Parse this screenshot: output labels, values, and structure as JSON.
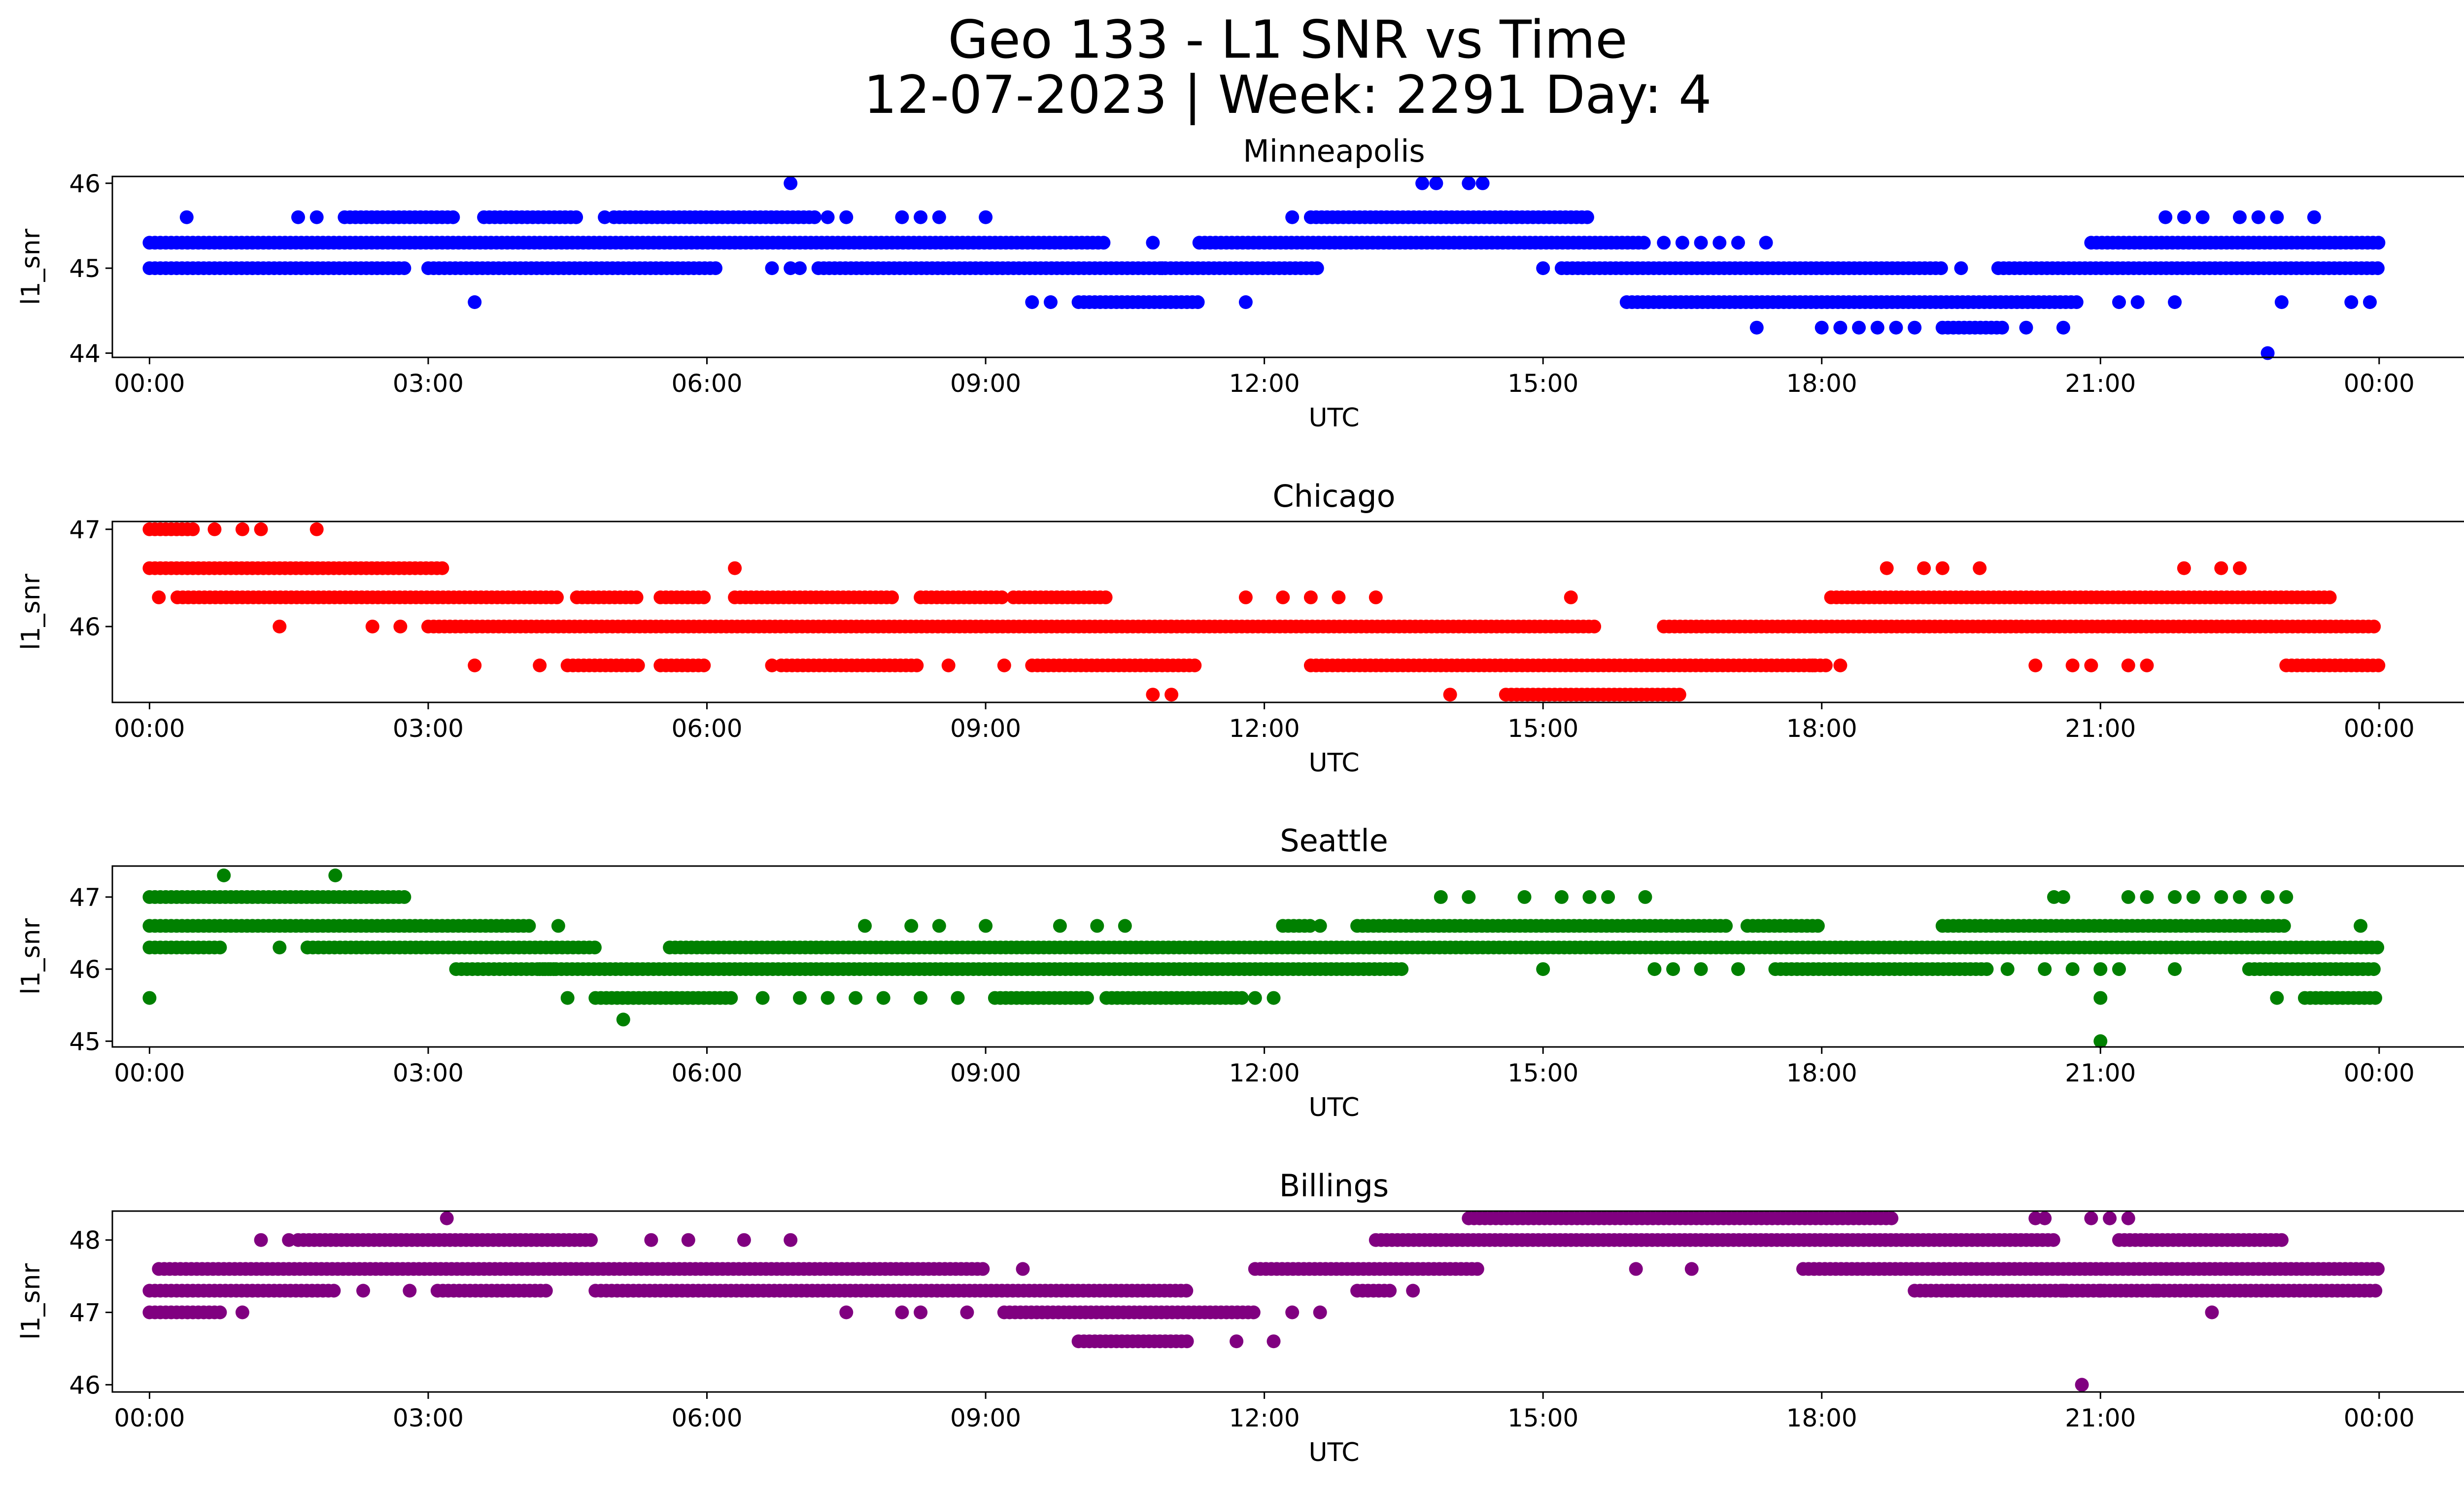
{
  "figure": {
    "title_line1": "Geo 133 - L1 SNR vs Time",
    "title_line2": "12-07-2023 | Week: 2291 Day: 4"
  },
  "chart_data": [
    {
      "type": "scatter",
      "title": "Minneapolis",
      "xlabel": "UTC",
      "ylabel": "l1_snr",
      "color": "#0000ff",
      "x_unit": "hours UTC",
      "xlim": [
        -0.4,
        25.9
      ],
      "ylim": [
        43.95,
        46.08
      ],
      "yticks": [
        44,
        45,
        46
      ],
      "xtick_labels": [
        "00:00",
        "03:00",
        "06:00",
        "09:00",
        "12:00",
        "15:00",
        "18:00",
        "21:00",
        "00:00"
      ],
      "segments": [
        {
          "y": 45.3,
          "x": [
            [
              0.0,
              10.3
            ],
            [
              11.3,
              16.1
            ],
            [
              20.9,
              24.0
            ]
          ]
        },
        {
          "y": 45.0,
          "x": [
            [
              0.0,
              2.8
            ],
            [
              3.0,
              6.1
            ],
            [
              7.2,
              12.6
            ],
            [
              15.2,
              19.3
            ],
            [
              19.9,
              24.0
            ]
          ]
        },
        {
          "y": 45.6,
          "x": [
            [
              2.1,
              3.3
            ],
            [
              3.6,
              4.6
            ],
            [
              5.0,
              7.2
            ],
            [
              12.5,
              15.5
            ]
          ]
        },
        {
          "y": 44.6,
          "x": [
            [
              10.0,
              11.3
            ],
            [
              15.9,
              20.8
            ]
          ]
        },
        {
          "y": 44.3,
          "x": [
            [
              19.3,
              20.0
            ]
          ]
        }
      ],
      "points": [
        {
          "x": 0.4,
          "y": 45.6
        },
        {
          "x": 1.6,
          "y": 45.6
        },
        {
          "x": 1.8,
          "y": 45.6
        },
        {
          "x": 4.9,
          "y": 45.6
        },
        {
          "x": 8.1,
          "y": 45.6
        },
        {
          "x": 8.3,
          "y": 45.6
        },
        {
          "x": 8.5,
          "y": 45.6
        },
        {
          "x": 9.0,
          "y": 45.6
        },
        {
          "x": 7.3,
          "y": 45.6
        },
        {
          "x": 7.5,
          "y": 45.6
        },
        {
          "x": 12.3,
          "y": 45.6
        },
        {
          "x": 3.5,
          "y": 44.6
        },
        {
          "x": 6.7,
          "y": 45.0
        },
        {
          "x": 6.9,
          "y": 45.0
        },
        {
          "x": 7.0,
          "y": 45.0
        },
        {
          "x": 6.9,
          "y": 46.0
        },
        {
          "x": 13.7,
          "y": 46.0
        },
        {
          "x": 13.85,
          "y": 46.0
        },
        {
          "x": 14.2,
          "y": 46.0
        },
        {
          "x": 14.35,
          "y": 46.0
        },
        {
          "x": 9.5,
          "y": 44.6
        },
        {
          "x": 9.7,
          "y": 44.6
        },
        {
          "x": 11.8,
          "y": 44.6
        },
        {
          "x": 10.9,
          "y": 45.0
        },
        {
          "x": 10.8,
          "y": 45.3
        },
        {
          "x": 16.3,
          "y": 45.3
        },
        {
          "x": 16.5,
          "y": 45.3
        },
        {
          "x": 16.7,
          "y": 45.3
        },
        {
          "x": 16.9,
          "y": 45.3
        },
        {
          "x": 17.1,
          "y": 45.3
        },
        {
          "x": 17.4,
          "y": 45.3
        },
        {
          "x": 17.3,
          "y": 44.3
        },
        {
          "x": 18.0,
          "y": 44.3
        },
        {
          "x": 18.2,
          "y": 44.3
        },
        {
          "x": 18.4,
          "y": 44.3
        },
        {
          "x": 18.6,
          "y": 44.3
        },
        {
          "x": 18.8,
          "y": 44.3
        },
        {
          "x": 19.0,
          "y": 44.3
        },
        {
          "x": 20.2,
          "y": 44.3
        },
        {
          "x": 20.6,
          "y": 44.3
        },
        {
          "x": 19.5,
          "y": 45.0
        },
        {
          "x": 15.0,
          "y": 45.0
        },
        {
          "x": 21.2,
          "y": 44.6
        },
        {
          "x": 21.4,
          "y": 44.6
        },
        {
          "x": 21.8,
          "y": 44.6
        },
        {
          "x": 21.7,
          "y": 45.6
        },
        {
          "x": 21.9,
          "y": 45.6
        },
        {
          "x": 22.1,
          "y": 45.6
        },
        {
          "x": 22.5,
          "y": 45.6
        },
        {
          "x": 22.7,
          "y": 45.6
        },
        {
          "x": 22.9,
          "y": 45.6
        },
        {
          "x": 23.3,
          "y": 45.6
        },
        {
          "x": 22.8,
          "y": 44.0
        },
        {
          "x": 22.95,
          "y": 44.6
        },
        {
          "x": 23.7,
          "y": 44.6
        },
        {
          "x": 23.9,
          "y": 44.6
        }
      ]
    },
    {
      "type": "scatter",
      "title": "Chicago",
      "xlabel": "UTC",
      "ylabel": "l1_snr",
      "color": "#ff0000",
      "x_unit": "hours UTC",
      "xlim": [
        -0.4,
        25.9
      ],
      "ylim": [
        45.22,
        47.08
      ],
      "yticks": [
        46,
        47
      ],
      "xtick_labels": [
        "00:00",
        "03:00",
        "06:00",
        "09:00",
        "12:00",
        "15:00",
        "18:00",
        "21:00",
        "00:00"
      ],
      "segments": [
        {
          "y": 46.6,
          "x": [
            [
              0.0,
              3.2
            ]
          ]
        },
        {
          "y": 46.3,
          "x": [
            [
              0.3,
              4.4
            ],
            [
              4.6,
              5.3
            ],
            [
              5.5,
              6.0
            ],
            [
              6.3,
              8.0
            ],
            [
              8.3,
              9.2
            ],
            [
              9.3,
              10.3
            ],
            [
              18.1,
              23.5
            ]
          ]
        },
        {
          "y": 46.0,
          "x": [
            [
              3.0,
              11.0
            ],
            [
              11.0,
              15.6
            ],
            [
              16.3,
              24.0
            ]
          ]
        },
        {
          "y": 45.6,
          "x": [
            [
              4.5,
              5.3
            ],
            [
              5.5,
              6.0
            ],
            [
              6.8,
              8.3
            ],
            [
              9.5,
              11.3
            ],
            [
              12.5,
              18.1
            ],
            [
              23.0,
              24.0
            ]
          ]
        },
        {
          "y": 45.3,
          "x": [
            [
              14.6,
              16.5
            ]
          ]
        },
        {
          "y": 47.0,
          "x": [
            [
              0.0,
              0.5
            ]
          ]
        }
      ],
      "points": [
        {
          "x": 0.7,
          "y": 47.0
        },
        {
          "x": 1.0,
          "y": 47.0
        },
        {
          "x": 1.2,
          "y": 47.0
        },
        {
          "x": 1.8,
          "y": 47.0
        },
        {
          "x": 0.1,
          "y": 46.3
        },
        {
          "x": 1.4,
          "y": 46.0
        },
        {
          "x": 2.4,
          "y": 46.0
        },
        {
          "x": 2.7,
          "y": 46.0
        },
        {
          "x": 3.5,
          "y": 45.6
        },
        {
          "x": 4.2,
          "y": 45.6
        },
        {
          "x": 6.3,
          "y": 46.6
        },
        {
          "x": 6.7,
          "y": 45.6
        },
        {
          "x": 8.6,
          "y": 45.6
        },
        {
          "x": 9.2,
          "y": 45.6
        },
        {
          "x": 10.8,
          "y": 45.3
        },
        {
          "x": 11.0,
          "y": 45.3
        },
        {
          "x": 14.0,
          "y": 45.3
        },
        {
          "x": 15.3,
          "y": 46.3
        },
        {
          "x": 11.8,
          "y": 46.3
        },
        {
          "x": 12.2,
          "y": 46.3
        },
        {
          "x": 12.5,
          "y": 46.3
        },
        {
          "x": 12.8,
          "y": 46.3
        },
        {
          "x": 13.2,
          "y": 46.3
        },
        {
          "x": 18.7,
          "y": 46.6
        },
        {
          "x": 19.1,
          "y": 46.6
        },
        {
          "x": 19.3,
          "y": 46.6
        },
        {
          "x": 19.7,
          "y": 46.6
        },
        {
          "x": 21.9,
          "y": 46.6
        },
        {
          "x": 22.3,
          "y": 46.6
        },
        {
          "x": 22.5,
          "y": 46.6
        },
        {
          "x": 20.3,
          "y": 45.6
        },
        {
          "x": 20.7,
          "y": 45.6
        },
        {
          "x": 20.9,
          "y": 45.6
        },
        {
          "x": 21.3,
          "y": 45.6
        },
        {
          "x": 21.5,
          "y": 45.6
        },
        {
          "x": 17.9,
          "y": 45.6
        },
        {
          "x": 18.2,
          "y": 45.6
        }
      ]
    },
    {
      "type": "scatter",
      "title": "Seattle",
      "xlabel": "UTC",
      "ylabel": "l1_snr",
      "color": "#008000",
      "x_unit": "hours UTC",
      "xlim": [
        -0.4,
        25.9
      ],
      "ylim": [
        44.92,
        47.43
      ],
      "yticks": [
        45,
        46,
        47
      ],
      "xtick_labels": [
        "00:00",
        "03:00",
        "06:00",
        "09:00",
        "12:00",
        "15:00",
        "18:00",
        "21:00",
        "00:00"
      ],
      "segments": [
        {
          "y": 47.0,
          "x": [
            [
              0.0,
              2.8
            ]
          ]
        },
        {
          "y": 46.6,
          "x": [
            [
              0.0,
              4.1
            ],
            [
              12.2,
              12.5
            ],
            [
              13.0,
              17.0
            ],
            [
              17.2,
              18.0
            ],
            [
              19.3,
              23.0
            ]
          ]
        },
        {
          "y": 46.3,
          "x": [
            [
              0.0,
              0.8
            ],
            [
              1.7,
              4.8
            ],
            [
              5.6,
              24.0
            ]
          ]
        },
        {
          "y": 46.0,
          "x": [
            [
              3.3,
              4.4
            ],
            [
              4.2,
              13.5
            ],
            [
              17.5,
              19.8
            ],
            [
              22.6,
              24.0
            ]
          ]
        },
        {
          "y": 45.6,
          "x": [
            [
              4.8,
              6.3
            ],
            [
              9.1,
              10.1
            ],
            [
              10.3,
              11.8
            ],
            [
              23.2,
              24.0
            ]
          ]
        }
      ],
      "points": [
        {
          "x": 0.0,
          "y": 45.6
        },
        {
          "x": 0.8,
          "y": 47.3
        },
        {
          "x": 2.0,
          "y": 47.3
        },
        {
          "x": 1.4,
          "y": 46.3
        },
        {
          "x": 1.7,
          "y": 46.3
        },
        {
          "x": 4.4,
          "y": 46.6
        },
        {
          "x": 4.5,
          "y": 45.6
        },
        {
          "x": 5.1,
          "y": 45.3
        },
        {
          "x": 6.6,
          "y": 45.6
        },
        {
          "x": 7.0,
          "y": 45.6
        },
        {
          "x": 7.3,
          "y": 45.6
        },
        {
          "x": 7.6,
          "y": 45.6
        },
        {
          "x": 7.9,
          "y": 45.6
        },
        {
          "x": 8.3,
          "y": 45.6
        },
        {
          "x": 8.7,
          "y": 45.6
        },
        {
          "x": 11.9,
          "y": 45.6
        },
        {
          "x": 12.1,
          "y": 45.6
        },
        {
          "x": 7.7,
          "y": 46.6
        },
        {
          "x": 8.2,
          "y": 46.6
        },
        {
          "x": 8.5,
          "y": 46.6
        },
        {
          "x": 9.0,
          "y": 46.6
        },
        {
          "x": 9.8,
          "y": 46.6
        },
        {
          "x": 10.2,
          "y": 46.6
        },
        {
          "x": 10.5,
          "y": 46.6
        },
        {
          "x": 12.6,
          "y": 46.6
        },
        {
          "x": 13.9,
          "y": 47.0
        },
        {
          "x": 14.2,
          "y": 47.0
        },
        {
          "x": 14.8,
          "y": 47.0
        },
        {
          "x": 15.2,
          "y": 47.0
        },
        {
          "x": 15.5,
          "y": 47.0
        },
        {
          "x": 15.7,
          "y": 47.0
        },
        {
          "x": 16.1,
          "y": 47.0
        },
        {
          "x": 15.0,
          "y": 46.0
        },
        {
          "x": 16.2,
          "y": 46.0
        },
        {
          "x": 16.4,
          "y": 46.0
        },
        {
          "x": 16.7,
          "y": 46.0
        },
        {
          "x": 17.1,
          "y": 46.0
        },
        {
          "x": 20.0,
          "y": 46.0
        },
        {
          "x": 20.4,
          "y": 46.0
        },
        {
          "x": 20.7,
          "y": 46.0
        },
        {
          "x": 21.0,
          "y": 46.0
        },
        {
          "x": 21.2,
          "y": 46.0
        },
        {
          "x": 21.8,
          "y": 46.0
        },
        {
          "x": 21.0,
          "y": 45.0
        },
        {
          "x": 21.0,
          "y": 45.6
        },
        {
          "x": 20.5,
          "y": 47.0
        },
        {
          "x": 20.6,
          "y": 47.0
        },
        {
          "x": 21.3,
          "y": 47.0
        },
        {
          "x": 21.5,
          "y": 47.0
        },
        {
          "x": 21.8,
          "y": 47.0
        },
        {
          "x": 22.0,
          "y": 47.0
        },
        {
          "x": 22.3,
          "y": 47.0
        },
        {
          "x": 22.5,
          "y": 47.0
        },
        {
          "x": 22.8,
          "y": 47.0
        },
        {
          "x": 23.0,
          "y": 47.0
        },
        {
          "x": 22.9,
          "y": 45.6
        },
        {
          "x": 23.8,
          "y": 46.6
        }
      ]
    },
    {
      "type": "scatter",
      "title": "Billings",
      "xlabel": "UTC",
      "ylabel": "l1_snr",
      "color": "#800080",
      "x_unit": "hours UTC",
      "xlim": [
        -0.4,
        25.9
      ],
      "ylim": [
        45.9,
        48.4
      ],
      "yticks": [
        46,
        47,
        48
      ],
      "xtick_labels": [
        "00:00",
        "03:00",
        "06:00",
        "09:00",
        "12:00",
        "15:00",
        "18:00",
        "21:00",
        "00:00"
      ],
      "segments": [
        {
          "y": 47.6,
          "x": [
            [
              0.1,
              9.0
            ],
            [
              11.9,
              14.3
            ],
            [
              17.8,
              24.0
            ]
          ]
        },
        {
          "y": 47.3,
          "x": [
            [
              0.0,
              2.0
            ],
            [
              3.1,
              4.3
            ],
            [
              4.8,
              11.2
            ],
            [
              13.0,
              13.4
            ],
            [
              19.0,
              24.0
            ]
          ]
        },
        {
          "y": 47.0,
          "x": [
            [
              0.0,
              0.8
            ],
            [
              9.2,
              11.9
            ]
          ]
        },
        {
          "y": 48.0,
          "x": [
            [
              1.6,
              4.8
            ],
            [
              13.2,
              20.5
            ],
            [
              21.2,
              23.0
            ]
          ]
        },
        {
          "y": 48.3,
          "x": [
            [
              14.2,
              18.8
            ]
          ]
        },
        {
          "y": 46.6,
          "x": [
            [
              10.0,
              11.2
            ]
          ]
        }
      ],
      "points": [
        {
          "x": 1.2,
          "y": 48.0
        },
        {
          "x": 1.5,
          "y": 48.0
        },
        {
          "x": 3.2,
          "y": 48.3
        },
        {
          "x": 1.0,
          "y": 47.0
        },
        {
          "x": 2.3,
          "y": 47.3
        },
        {
          "x": 2.8,
          "y": 47.3
        },
        {
          "x": 5.4,
          "y": 48.0
        },
        {
          "x": 5.8,
          "y": 48.0
        },
        {
          "x": 6.4,
          "y": 48.0
        },
        {
          "x": 6.9,
          "y": 48.0
        },
        {
          "x": 7.5,
          "y": 47.0
        },
        {
          "x": 8.1,
          "y": 47.0
        },
        {
          "x": 8.3,
          "y": 47.0
        },
        {
          "x": 8.8,
          "y": 47.0
        },
        {
          "x": 9.4,
          "y": 47.6
        },
        {
          "x": 11.7,
          "y": 46.6
        },
        {
          "x": 12.1,
          "y": 46.6
        },
        {
          "x": 12.3,
          "y": 47.0
        },
        {
          "x": 12.6,
          "y": 47.0
        },
        {
          "x": 13.6,
          "y": 47.3
        },
        {
          "x": 16.0,
          "y": 47.6
        },
        {
          "x": 16.6,
          "y": 47.6
        },
        {
          "x": 19.4,
          "y": 47.3
        },
        {
          "x": 20.3,
          "y": 48.3
        },
        {
          "x": 20.4,
          "y": 48.3
        },
        {
          "x": 20.9,
          "y": 48.3
        },
        {
          "x": 21.1,
          "y": 48.3
        },
        {
          "x": 21.3,
          "y": 48.3
        },
        {
          "x": 20.8,
          "y": 46.0
        },
        {
          "x": 21.0,
          "y": 47.3
        },
        {
          "x": 21.6,
          "y": 47.3
        },
        {
          "x": 22.1,
          "y": 47.3
        },
        {
          "x": 22.2,
          "y": 47.0
        },
        {
          "x": 20.0,
          "y": 47.3
        },
        {
          "x": 20.6,
          "y": 47.3
        }
      ]
    }
  ]
}
